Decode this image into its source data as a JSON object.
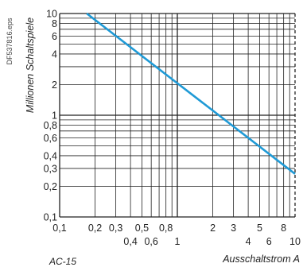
{
  "chart_data": {
    "type": "line",
    "title": "",
    "xlabel": "Ausschaltstrom A",
    "ylabel": "Millionen Schaltspiele",
    "x_scale": "log",
    "y_scale": "log",
    "xlim": [
      0.1,
      10
    ],
    "ylim": [
      0.1,
      10
    ],
    "grid": true,
    "legend": "none",
    "x_ticks_row1": [
      "0,1",
      "0,2",
      "0,3",
      "0,5",
      "0,8",
      "2",
      "3",
      "5",
      "8"
    ],
    "x_ticks_row2": [
      "0,4",
      "0,6",
      "1",
      "4",
      "6",
      "10"
    ],
    "y_ticks": [
      "0,1",
      "0,2",
      "0,3",
      "0,4",
      "0,6",
      "0,8",
      "1",
      "2",
      "4",
      "6",
      "8",
      "10"
    ],
    "series": [
      {
        "color": "#1f9ad6",
        "x": [
          0.17,
          10
        ],
        "y": [
          10,
          0.265
        ]
      }
    ]
  },
  "side_note": "DF537816.eps",
  "bottom_note": "AC-15"
}
